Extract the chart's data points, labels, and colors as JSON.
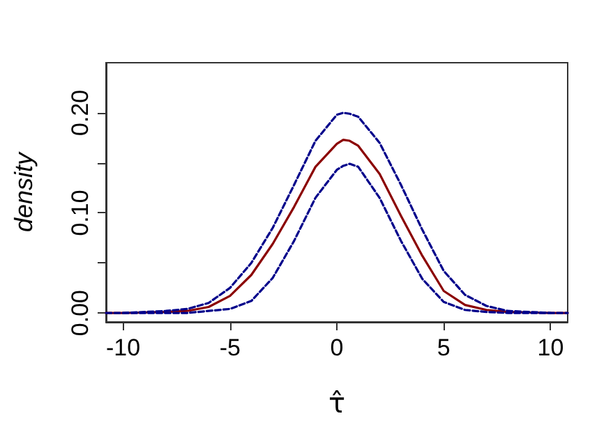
{
  "chart_data": {
    "type": "line",
    "xlabel": "τ̂",
    "ylabel": "density",
    "x": [
      -10.8,
      -10,
      -8,
      -7,
      -6,
      -5,
      -4,
      -3,
      -2,
      -1,
      0,
      0.3,
      0.6,
      1,
      2,
      3,
      4,
      5,
      6,
      7,
      8,
      10,
      10.8
    ],
    "series": [
      {
        "color": "#8b0000",
        "line_style": "solid",
        "values": [
          0,
          0,
          0.001,
          0.002,
          0.006,
          0.017,
          0.038,
          0.069,
          0.106,
          0.146,
          0.169,
          0.173,
          0.172,
          0.167,
          0.139,
          0.097,
          0.057,
          0.022,
          0.008,
          0.003,
          0.001,
          0,
          0
        ]
      },
      {
        "color": "#00008b",
        "line_style": "dashed",
        "values": [
          0,
          0,
          0.002,
          0.004,
          0.01,
          0.025,
          0.05,
          0.085,
          0.128,
          0.172,
          0.198,
          0.2,
          0.199,
          0.196,
          0.17,
          0.128,
          0.083,
          0.042,
          0.018,
          0.007,
          0.002,
          0,
          0
        ]
      },
      {
        "color": "#00008b",
        "line_style": "dashed",
        "x": [
          -10,
          -8,
          -7,
          -6,
          -5,
          -4,
          -3,
          -2,
          -1,
          0,
          0.3,
          0.6,
          1,
          2,
          3,
          4,
          5,
          6,
          7,
          8,
          10
        ],
        "values": [
          0,
          0,
          0,
          0.002,
          0.004,
          0.012,
          0.035,
          0.072,
          0.115,
          0.143,
          0.147,
          0.149,
          0.146,
          0.115,
          0.072,
          0.034,
          0.011,
          0.003,
          0.001,
          0,
          0
        ]
      }
    ],
    "xlim": [
      -10.8,
      10.8
    ],
    "xticks": [
      -10,
      -5,
      0,
      5,
      10
    ],
    "ylim": [
      -0.009,
      0.25
    ],
    "yticks": [
      {
        "value": 0,
        "label": "0.00"
      },
      {
        "value": 0.05,
        "label": null
      },
      {
        "value": 0.1,
        "label": "0.10"
      },
      {
        "value": 0.15,
        "label": null
      },
      {
        "value": 0.2,
        "label": "0.20"
      }
    ],
    "grid": false,
    "marker": "none"
  }
}
